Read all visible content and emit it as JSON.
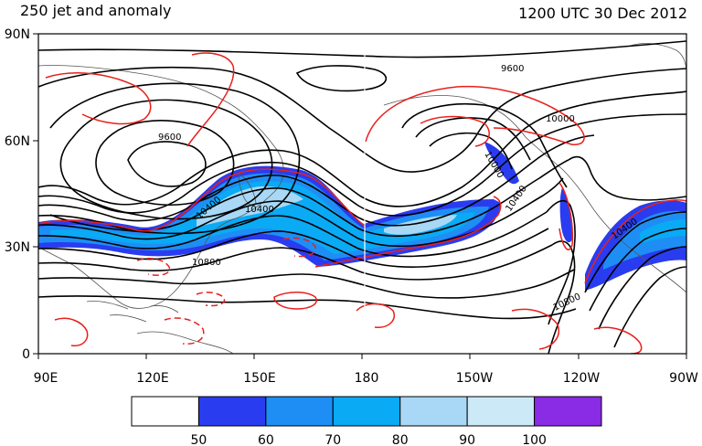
{
  "map": {
    "title_left": "250 jet and anomaly",
    "title_right": "1200 UTC 30 Dec 2012",
    "lat_labels": [
      "90N",
      "60N",
      "30N",
      "0"
    ],
    "lon_labels": [
      "90E",
      "120E",
      "150E",
      "180",
      "150W",
      "120W",
      "90W"
    ],
    "height_labels": [
      "9600",
      "9600",
      "10000",
      "10000",
      "10400",
      "10400",
      "10400",
      "10400",
      "10800",
      "10800"
    ],
    "colors": {
      "ocean": "#ffffff",
      "height_contour": "#000000",
      "anomaly_contour": "#e8201c",
      "coast": "#555555"
    }
  },
  "colorbar": {
    "ticks": [
      "50",
      "60",
      "70",
      "80",
      "90",
      "100"
    ],
    "colors": [
      "#ffffff",
      "#2a3cf0",
      "#1e8ef5",
      "#0aaaf5",
      "#a8d8f5",
      "#cce9f8",
      "#8a2be6"
    ]
  }
}
